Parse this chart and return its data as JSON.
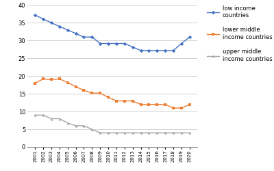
{
  "years": [
    2001,
    2002,
    2003,
    2004,
    2005,
    2006,
    2007,
    2008,
    2009,
    2010,
    2011,
    2012,
    2013,
    2014,
    2015,
    2016,
    2017,
    2018,
    2019,
    2020
  ],
  "low_income": [
    37.2,
    36.1,
    35.0,
    34.0,
    33.0,
    32.0,
    31.0,
    31.0,
    29.2,
    29.2,
    29.2,
    29.2,
    28.2,
    27.2,
    27.2,
    27.2,
    27.2,
    27.2,
    29.2,
    31.0
  ],
  "lower_middle": [
    18.0,
    19.2,
    19.0,
    19.2,
    18.2,
    17.0,
    16.0,
    15.2,
    15.2,
    14.0,
    13.0,
    13.0,
    13.0,
    12.0,
    12.0,
    12.0,
    12.0,
    11.0,
    11.0,
    12.0
  ],
  "upper_middle": [
    9.0,
    9.0,
    8.0,
    8.0,
    6.8,
    6.0,
    6.0,
    5.0,
    4.0,
    4.0,
    4.0,
    4.0,
    4.0,
    4.0,
    4.0,
    4.0,
    4.0,
    4.0,
    4.0,
    4.0
  ],
  "low_income_color": "#4472c4",
  "lower_middle_color": "#ed7d31",
  "upper_middle_color": "#a5a5a5",
  "ylim": [
    0,
    40
  ],
  "yticks": [
    0,
    5,
    10,
    15,
    20,
    25,
    30,
    35,
    40
  ],
  "legend_labels": [
    "low income\ncountries",
    "lower middle\nincome countries",
    "upper middle\nincome countries"
  ],
  "background_color": "#ffffff",
  "grid_color": "#c8c8c8"
}
